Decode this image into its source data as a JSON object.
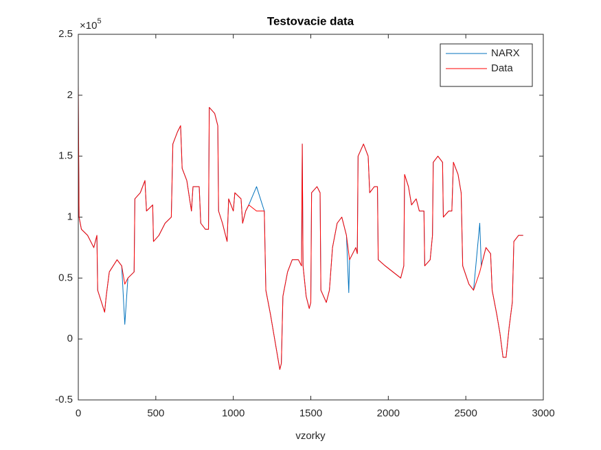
{
  "chart_data": {
    "type": "line",
    "title": "Testovacie data",
    "xlabel": "vzorky",
    "y_multiplier": {
      "base": "×10",
      "exponent": "5"
    },
    "x": [
      0,
      5,
      20,
      60,
      100,
      120,
      125,
      150,
      170,
      180,
      200,
      250,
      280,
      300,
      320,
      360,
      365,
      400,
      430,
      440,
      480,
      485,
      520,
      560,
      600,
      610,
      640,
      660,
      670,
      700,
      730,
      740,
      780,
      790,
      820,
      840,
      845,
      880,
      900,
      905,
      930,
      960,
      970,
      1000,
      1010,
      1050,
      1060,
      1080,
      1100,
      1150,
      1200,
      1210,
      1240,
      1260,
      1280,
      1300,
      1310,
      1320,
      1350,
      1380,
      1420,
      1440,
      1445,
      1450,
      1470,
      1490,
      1500,
      1505,
      1540,
      1560,
      1565,
      1600,
      1620,
      1640,
      1670,
      1700,
      1730,
      1745,
      1750,
      1790,
      1800,
      1805,
      1840,
      1870,
      1880,
      1910,
      1930,
      1935,
      1980,
      2030,
      2080,
      2100,
      2105,
      2130,
      2150,
      2180,
      2200,
      2230,
      2235,
      2270,
      2285,
      2290,
      2320,
      2350,
      2355,
      2390,
      2410,
      2420,
      2450,
      2470,
      2480,
      2520,
      2550,
      2590,
      2600,
      2630,
      2660,
      2670,
      2700,
      2720,
      2740,
      2760,
      2780,
      2800,
      2810,
      2840,
      2870
    ],
    "series": [
      {
        "name": "NARX",
        "color": "#0072BD",
        "values": [
          1.9,
          1.0,
          0.9,
          0.85,
          0.75,
          0.85,
          0.4,
          0.3,
          0.22,
          0.35,
          0.55,
          0.65,
          0.6,
          0.12,
          0.5,
          0.55,
          1.15,
          1.2,
          1.3,
          1.05,
          1.1,
          0.8,
          0.85,
          0.95,
          1.0,
          1.6,
          1.7,
          1.75,
          1.4,
          1.3,
          1.05,
          1.25,
          1.25,
          0.95,
          0.9,
          0.9,
          1.9,
          1.85,
          1.75,
          1.05,
          0.95,
          0.8,
          1.15,
          1.05,
          1.2,
          1.15,
          0.95,
          1.05,
          1.1,
          1.25,
          1.05,
          0.4,
          0.2,
          0.05,
          -0.1,
          -0.25,
          -0.2,
          0.35,
          0.55,
          0.65,
          0.65,
          0.6,
          1.6,
          0.6,
          0.35,
          0.25,
          0.3,
          1.2,
          1.25,
          1.2,
          0.4,
          0.3,
          0.4,
          0.75,
          0.95,
          1.0,
          0.85,
          0.38,
          0.65,
          0.75,
          0.7,
          1.5,
          1.6,
          1.5,
          1.2,
          1.25,
          1.25,
          0.65,
          0.6,
          0.55,
          0.5,
          0.6,
          1.35,
          1.25,
          1.1,
          1.15,
          1.05,
          1.05,
          0.6,
          0.65,
          0.85,
          1.45,
          1.5,
          1.45,
          1.0,
          1.05,
          1.05,
          1.45,
          1.35,
          1.2,
          0.6,
          0.45,
          0.4,
          0.95,
          0.6,
          0.75,
          0.7,
          0.4,
          0.2,
          0.05,
          -0.15,
          -0.15,
          0.1,
          0.3,
          0.8,
          0.85,
          0.85
        ]
      },
      {
        "name": "Data",
        "color": "#FF0000",
        "values": [
          2.1,
          1.0,
          0.9,
          0.85,
          0.75,
          0.85,
          0.4,
          0.3,
          0.22,
          0.35,
          0.55,
          0.65,
          0.6,
          0.45,
          0.5,
          0.55,
          1.15,
          1.2,
          1.3,
          1.05,
          1.1,
          0.8,
          0.85,
          0.95,
          1.0,
          1.6,
          1.7,
          1.75,
          1.4,
          1.3,
          1.05,
          1.25,
          1.25,
          0.95,
          0.9,
          0.9,
          1.9,
          1.85,
          1.75,
          1.05,
          0.95,
          0.8,
          1.15,
          1.05,
          1.2,
          1.15,
          0.95,
          1.05,
          1.1,
          1.05,
          1.05,
          0.4,
          0.2,
          0.05,
          -0.1,
          -0.25,
          -0.2,
          0.35,
          0.55,
          0.65,
          0.65,
          0.6,
          1.6,
          0.6,
          0.35,
          0.25,
          0.3,
          1.2,
          1.25,
          1.2,
          0.4,
          0.3,
          0.4,
          0.75,
          0.95,
          1.0,
          0.85,
          0.7,
          0.65,
          0.75,
          0.7,
          1.5,
          1.6,
          1.5,
          1.2,
          1.25,
          1.25,
          0.65,
          0.6,
          0.55,
          0.5,
          0.6,
          1.35,
          1.25,
          1.1,
          1.15,
          1.05,
          1.05,
          0.6,
          0.65,
          0.85,
          1.45,
          1.5,
          1.45,
          1.0,
          1.05,
          1.05,
          1.45,
          1.35,
          1.2,
          0.6,
          0.45,
          0.4,
          0.55,
          0.6,
          0.75,
          0.7,
          0.4,
          0.2,
          0.05,
          -0.15,
          -0.15,
          0.1,
          0.3,
          0.8,
          0.85,
          0.85
        ]
      }
    ],
    "xlim": [
      0,
      3000
    ],
    "xticks": [
      0,
      500,
      1000,
      1500,
      2000,
      2500,
      3000
    ],
    "ylim": [
      -0.5,
      2.5
    ],
    "yticks": [
      -0.5,
      0,
      0.5,
      1,
      1.5,
      2,
      2.5
    ],
    "legend": "upper right",
    "grid": false
  }
}
